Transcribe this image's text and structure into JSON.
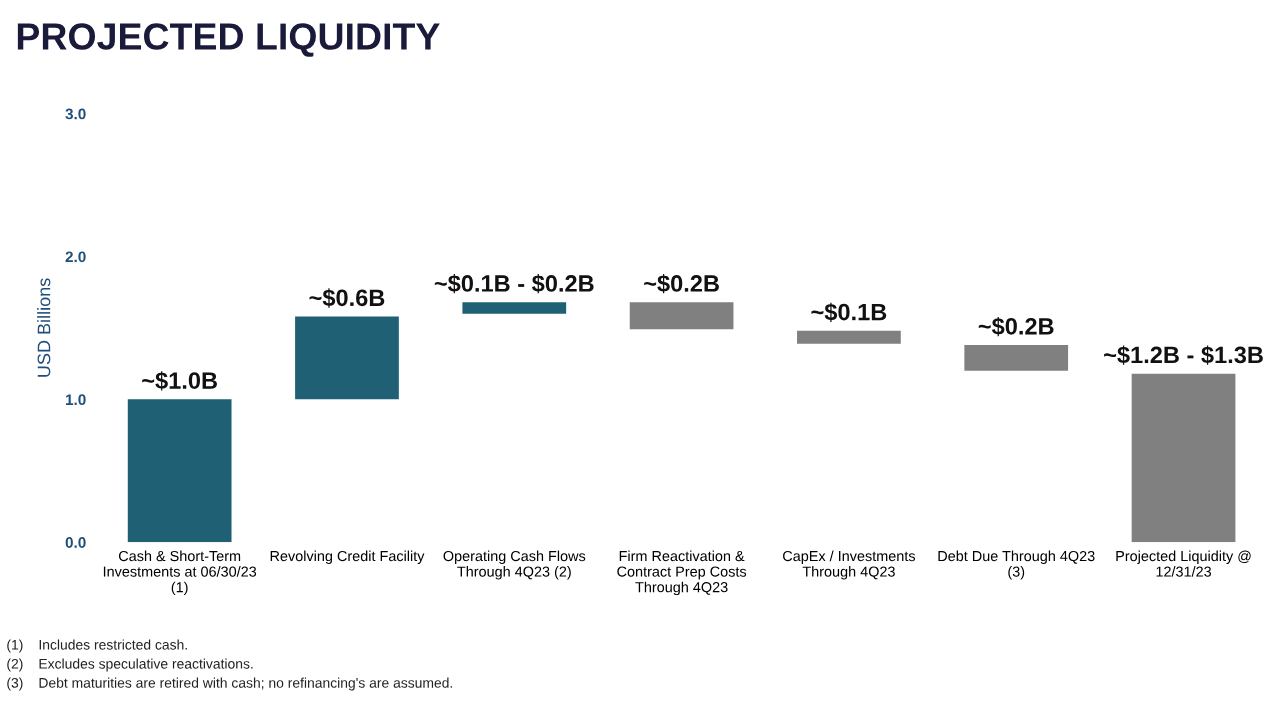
{
  "chart_data": {
    "type": "bar",
    "title": "PROJECTED LIQUIDITY",
    "ylabel": "USD Billions",
    "categories": [
      "Cash & Short-Term\nInvestments at 06/30/23\n(1)",
      "Revolving Credit Facility",
      "Operating Cash Flows\nThrough 4Q23 (2)",
      "Firm Reactivation &\nContract Prep Costs\nThrough 4Q23",
      "CapEx / Investments\nThrough 4Q23",
      "Debt Due Through 4Q23\n(3)",
      "Projected Liquidity @\n12/31/23"
    ],
    "values": [
      1.0,
      0.58,
      0.08,
      0.19,
      0.09,
      0.18,
      1.18
    ],
    "base": [
      0,
      1.0,
      1.6,
      1.49,
      1.39,
      1.2,
      0
    ],
    "colors": [
      "#1f6074",
      "#1f6074",
      "#1f6074",
      "#808080",
      "#808080",
      "#808080",
      "#808080"
    ],
    "value_labels": [
      "~$1.0B",
      "~$0.6B",
      "~$0.1B - $0.2B",
      "~$0.2B",
      "~$0.1B",
      "~$0.2B",
      "~$1.2B - $1.3B"
    ],
    "ylim": [
      0,
      3
    ],
    "yticks": [
      {
        "value": 0,
        "label": "0.0"
      },
      {
        "value": 1,
        "label": "1.0"
      },
      {
        "value": 2,
        "label": "2.0"
      },
      {
        "value": 3,
        "label": "3.0"
      }
    ],
    "grid": false,
    "annotations": [
      "(1)\tIncludes restricted cash.",
      "(2)\tExcludes speculative reactivations.",
      "(3)\tDebt maturities are retired with cash; no refinancing's are assumed."
    ]
  }
}
